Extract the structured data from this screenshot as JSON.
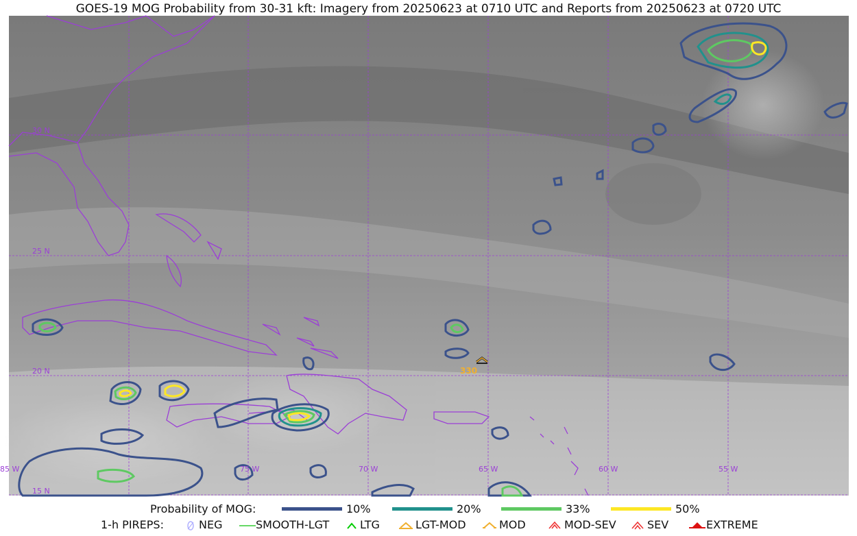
{
  "title": "GOES-19 MOG Probability from 30-31 kft: Imagery from 20250623 at 0710 UTC and Reports from 20250623 at 0720 UTC",
  "map": {
    "lat_labels": [
      "30 N",
      "25 N",
      "20 N",
      "15 N"
    ],
    "lon_labels": [
      "85 W",
      "75 W",
      "70 W",
      "65 W",
      "60 W",
      "55 W"
    ],
    "report_label": "330",
    "colors": {
      "boundary": "#9b3fd6",
      "grid": "#9b3fd6",
      "report": "#f0b030"
    }
  },
  "legend": {
    "prob_title": "Probability of MOG:",
    "prob_levels": [
      {
        "label": "10%",
        "color": "#3b528b"
      },
      {
        "label": "20%",
        "color": "#21918c"
      },
      {
        "label": "33%",
        "color": "#5ec962"
      },
      {
        "label": "50%",
        "color": "#fde725"
      }
    ],
    "pirep_title": "1-h PIREPS:",
    "pireps": [
      {
        "label": "NEG",
        "icon": "neg-icon",
        "color": "#b0b0ff"
      },
      {
        "label": "SMOOTH-LGT",
        "icon": "smooth-lgt-icon",
        "color": "#33cc33"
      },
      {
        "label": "LTG",
        "icon": "ltg-icon",
        "color": "#00cc00"
      },
      {
        "label": "LGT-MOD",
        "icon": "lgt-mod-icon",
        "color": "#f0b030"
      },
      {
        "label": "MOD",
        "icon": "mod-icon",
        "color": "#f0b030"
      },
      {
        "label": "MOD-SEV",
        "icon": "mod-sev-icon",
        "color": "#ee3333"
      },
      {
        "label": "SEV",
        "icon": "sev-icon",
        "color": "#ee3333"
      },
      {
        "label": "EXTREME",
        "icon": "extreme-icon",
        "color": "#dd1111"
      }
    ]
  }
}
